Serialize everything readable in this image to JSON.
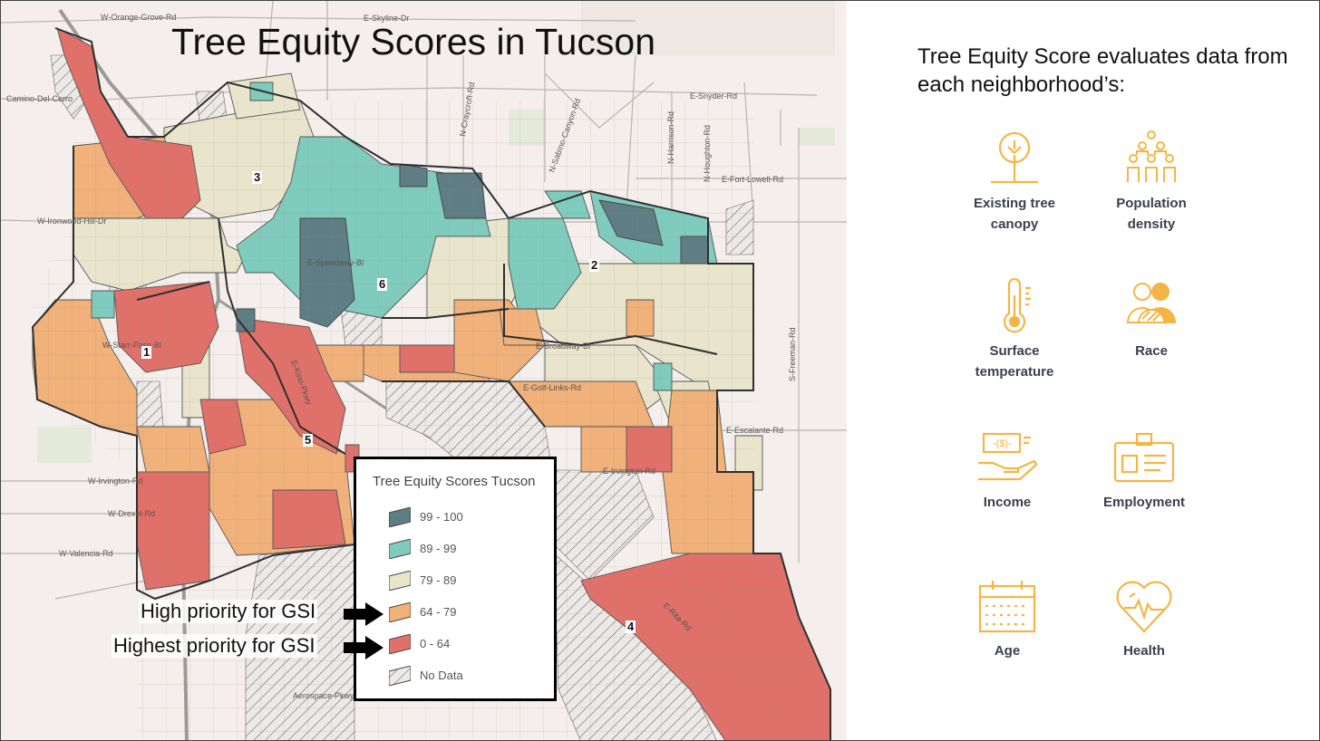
{
  "map": {
    "title": "Tree Equity Scores in Tucson",
    "road_labels": [
      "W-Orange-Grove-Rd",
      "E-Skyline-Dr",
      "Camino-Del-Cerro",
      "E-Snyder-Rd",
      "E-Fort-Lowell-Rd",
      "W-Ironwood-Hill-Dr",
      "E-Speedway-Bl",
      "E-Broadway-Bl",
      "W-Starr-Pass-Bl",
      "E-Golf-Links-Rd",
      "E-Escalante-Rd",
      "E-Irvington-Rd",
      "W-Irvington-Rd",
      "W-Drexel-Rd",
      "W-Valencia-Rd",
      "E-Kino-Pkwy",
      "N-Craycroft-Rd",
      "N-Sabino-Canyon-Rd",
      "N-Harrison-Rd",
      "N-Houghton-Rd",
      "S-Freeman-Rd",
      "E-Rita-Rd",
      "Aerospace-Pkwy"
    ],
    "districts": [
      "1",
      "2",
      "3",
      "4",
      "5",
      "6"
    ]
  },
  "legend": {
    "title": "Tree Equity Scores Tucson",
    "items": [
      {
        "label": "99 - 100",
        "color": "#5f7d85"
      },
      {
        "label": "89 - 99",
        "color": "#7fcbbd"
      },
      {
        "label": "79 - 89",
        "color": "#e8e5cc"
      },
      {
        "label": "64 - 79",
        "color": "#f0b17a"
      },
      {
        "label": "0 - 64",
        "color": "#e0716a"
      },
      {
        "label": "No Data",
        "color": "hatch"
      }
    ]
  },
  "callouts": {
    "high": "High priority for GSI",
    "highest": "Highest priority for GSI"
  },
  "right_panel": {
    "intro": "Tree Equity Score evaluates data from each neighborhood’s:",
    "accent_color": "#f5b545",
    "factors": [
      {
        "label_1": "Existing tree",
        "label_2": "canopy",
        "icon": "tree-icon"
      },
      {
        "label_1": "Population",
        "label_2": "density",
        "icon": "population-icon"
      },
      {
        "label_1": "Surface",
        "label_2": "temperature",
        "icon": "thermometer-icon"
      },
      {
        "label_1": "Race",
        "label_2": "",
        "icon": "people-group-icon"
      },
      {
        "label_1": "Income",
        "label_2": "",
        "icon": "hand-money-icon"
      },
      {
        "label_1": "Employment",
        "label_2": "",
        "icon": "id-badge-icon"
      },
      {
        "label_1": "Age",
        "label_2": "",
        "icon": "calendar-icon"
      },
      {
        "label_1": "Health",
        "label_2": "",
        "icon": "heart-pulse-icon"
      }
    ]
  }
}
